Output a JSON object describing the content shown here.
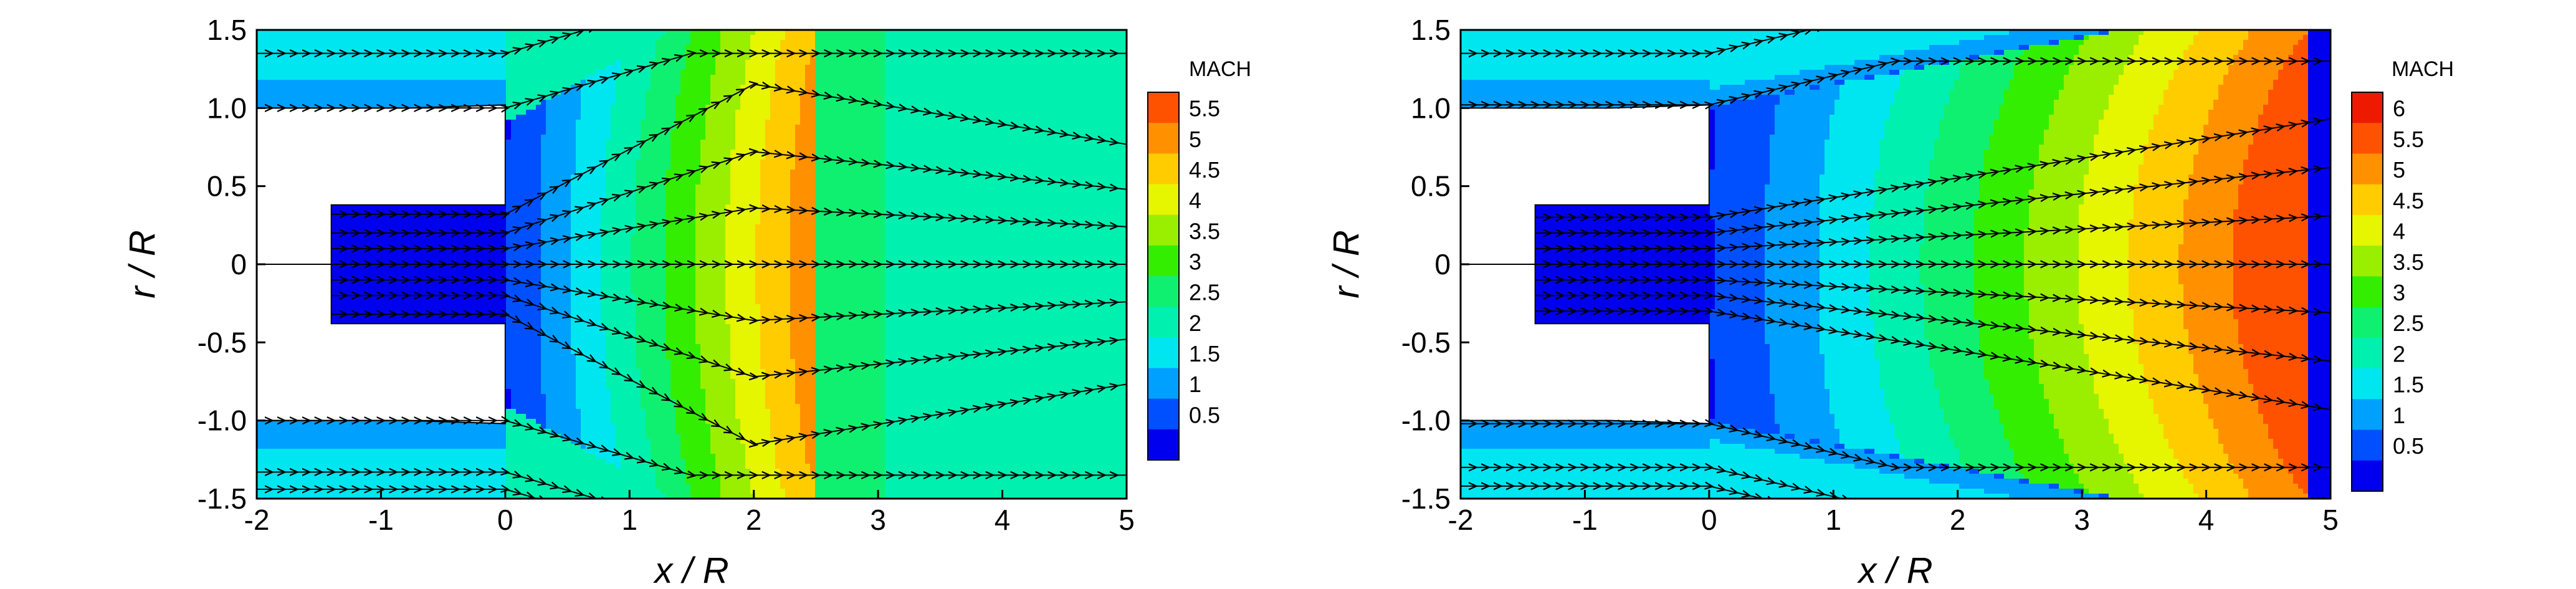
{
  "chart_data": [
    {
      "type": "heatmap",
      "xlabel": "x / R",
      "ylabel": "r / R",
      "xlim": [
        -2,
        5
      ],
      "ylim": [
        -1.5,
        1.5
      ],
      "x_ticks": [
        "-2",
        "-1",
        "0",
        "1",
        "2",
        "3",
        "4",
        "5"
      ],
      "y_ticks": [
        "1.5",
        "1.0",
        "0.5",
        "0",
        "-0.5",
        "-1.0",
        "-1.5"
      ],
      "legend_title": "MACH",
      "legend_ticks": [
        "5.5",
        "5",
        "4.5",
        "4",
        "3.5",
        "3",
        "2.5",
        "2",
        "1.5",
        "1",
        "0.5"
      ],
      "legend_placement": "right",
      "mach_min": 0.25,
      "mach_max": 5.75,
      "ambient_mach": 2.5,
      "jet_peak_mach": 5.4,
      "nozzle_inner_radius": 0.38,
      "nozzle_exit_x": 0,
      "streamline_y0": [
        1.35,
        1.0,
        0.32,
        0.2,
        0.1,
        0,
        -0.1,
        -0.2,
        -0.32,
        -1.0,
        -1.33,
        -1.44
      ]
    },
    {
      "type": "heatmap",
      "xlabel": "x / R",
      "ylabel": "r / R",
      "xlim": [
        -2,
        5
      ],
      "ylim": [
        -1.5,
        1.5
      ],
      "x_ticks": [
        "-2",
        "-1",
        "0",
        "1",
        "2",
        "3",
        "4",
        "5"
      ],
      "y_ticks": [
        "1.5",
        "1.0",
        "0.5",
        "0",
        "-0.5",
        "-1.0",
        "-1.5"
      ],
      "legend_title": "MACH",
      "legend_ticks": [
        "6",
        "5.5",
        "5",
        "4.5",
        "4",
        "3.5",
        "3",
        "2.5",
        "2",
        "1.5",
        "1",
        "0.5"
      ],
      "legend_placement": "right",
      "mach_min": 0.25,
      "mach_max": 6.25,
      "ambient_mach": 2.0,
      "jet_peak_mach": 6.2,
      "nozzle_inner_radius": 0.38,
      "nozzle_exit_x": 0,
      "streamline_y0": [
        1.35,
        1.02,
        0.3,
        0.2,
        0.1,
        0,
        -0.1,
        -0.2,
        -0.3,
        -1.02,
        -1.3,
        -1.42
      ]
    }
  ]
}
